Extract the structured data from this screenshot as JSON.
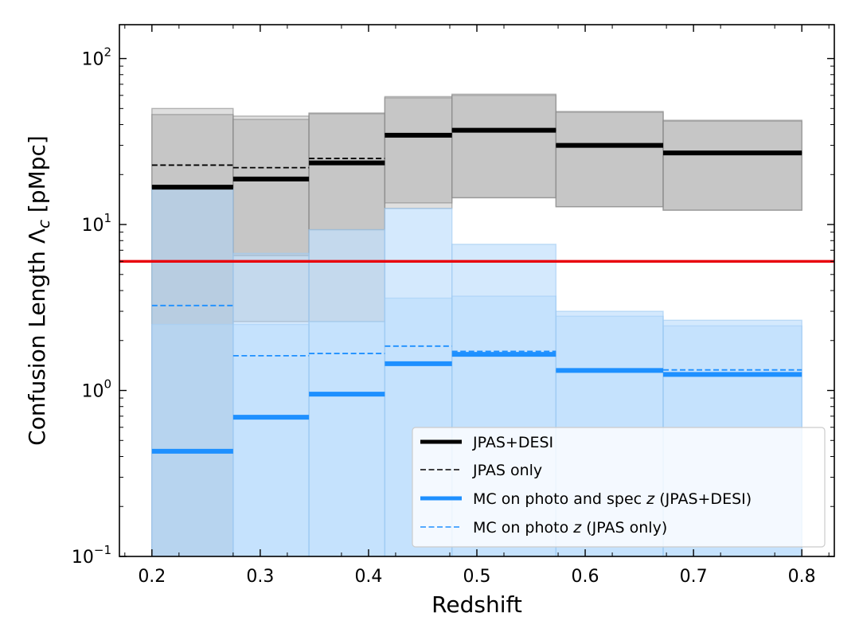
{
  "chart_data": {
    "type": "bar",
    "title": "",
    "xlabel": "Redshift",
    "ylabel": "Confusion Length Λ_c [pMpc]",
    "ylabel_parts": {
      "main": "Confusion Length Λ",
      "sub": "c",
      "unit": " [pMpc]"
    },
    "yscale": "log",
    "xlim": [
      0.17,
      0.83
    ],
    "ylim": [
      0.1,
      160
    ],
    "x_ticks": [
      {
        "value": 0.2,
        "label": "0.2"
      },
      {
        "value": 0.3,
        "label": "0.3"
      },
      {
        "value": 0.4,
        "label": "0.4"
      },
      {
        "value": 0.5,
        "label": "0.5"
      },
      {
        "value": 0.6,
        "label": "0.6"
      },
      {
        "value": 0.7,
        "label": "0.7"
      },
      {
        "value": 0.8,
        "label": "0.8"
      }
    ],
    "y_ticks": [
      {
        "value": 0.1,
        "base": "10",
        "exp": "−1"
      },
      {
        "value": 1,
        "base": "10",
        "exp": "0"
      },
      {
        "value": 10,
        "base": "10",
        "exp": "1"
      },
      {
        "value": 100,
        "base": "10",
        "exp": "2"
      }
    ],
    "bins": [
      {
        "lo": 0.2,
        "hi": 0.275
      },
      {
        "lo": 0.275,
        "hi": 0.345
      },
      {
        "lo": 0.345,
        "hi": 0.415
      },
      {
        "lo": 0.415,
        "hi": 0.477
      },
      {
        "lo": 0.477,
        "hi": 0.573
      },
      {
        "lo": 0.573,
        "hi": 0.672
      },
      {
        "lo": 0.672,
        "hi": 0.8
      }
    ],
    "reference_line": {
      "y": 6.0,
      "color": "#e8000b"
    },
    "series": [
      {
        "name": "JPAS+DESI",
        "style": "solid-thick",
        "color": "#000000",
        "values": [
          16.8,
          18.8,
          23.5,
          34.5,
          37.0,
          30.0,
          27.0
        ],
        "err_low": [
          0.1,
          6.5,
          9.3,
          13.5,
          14.5,
          12.8,
          12.2
        ],
        "err_high": [
          46.0,
          43.0,
          46.5,
          58.0,
          60.0,
          47.5,
          42.0
        ],
        "band_color": "#b0b0b0"
      },
      {
        "name": "JPAS only",
        "style": "dashed-thin",
        "color": "#000000",
        "values": [
          22.8,
          22.0,
          25.0,
          35.0,
          37.0,
          30.0,
          27.0
        ],
        "err_low": [
          0.1,
          2.6,
          2.6,
          12.5,
          14.5,
          12.8,
          12.2
        ],
        "err_high": [
          50.0,
          45.0,
          47.0,
          59.0,
          61.0,
          48.0,
          42.5
        ],
        "band_color": "#c4c4c4"
      },
      {
        "name": "MC on photo and spec z (JPAS+DESI)",
        "legend_prefix": "MC on photo and spec ",
        "legend_italic": "z",
        "legend_suffix": " (JPAS+DESI)",
        "style": "solid-thick",
        "color": "#1e90ff",
        "values": [
          0.43,
          0.69,
          0.95,
          1.45,
          1.65,
          1.32,
          1.25
        ],
        "err_low": [
          0.1,
          0.1,
          0.1,
          0.1,
          0.1,
          0.1,
          0.1
        ],
        "err_high": [
          16.5,
          6.7,
          9.3,
          12.5,
          7.6,
          3.0,
          2.65
        ],
        "band_color": "#a9d3fb"
      },
      {
        "name": "MC on photo z (JPAS only)",
        "legend_prefix": "MC on photo ",
        "legend_italic": "z",
        "legend_suffix": " (JPAS only)",
        "style": "dashed-thin",
        "color": "#1e90ff",
        "values": [
          3.25,
          1.62,
          1.67,
          1.85,
          1.72,
          1.32,
          1.33
        ],
        "err_low": [
          0.1,
          0.1,
          0.1,
          0.1,
          0.1,
          0.1,
          0.1
        ],
        "err_high": [
          2.5,
          2.5,
          2.6,
          3.6,
          3.7,
          2.8,
          2.45
        ],
        "band_color": "#c3e1fd"
      }
    ],
    "legend_location": "lower-right"
  }
}
